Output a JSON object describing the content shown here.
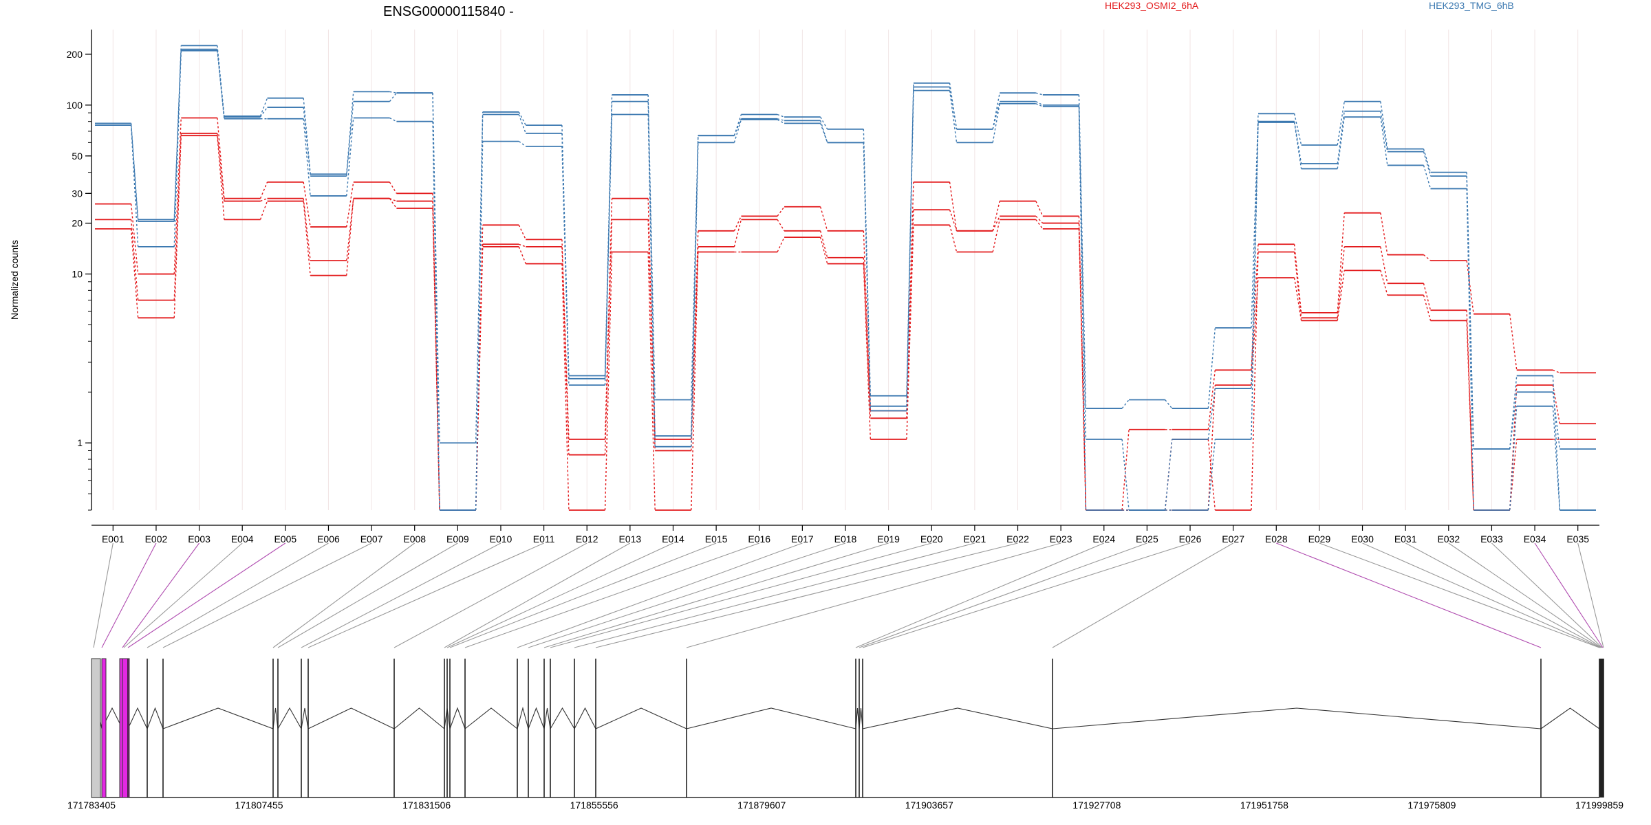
{
  "chart_data": {
    "type": "line",
    "title": "ENSG00000115840 -",
    "ylabel": "Normalized counts",
    "xlabel": "",
    "y_scale": "log",
    "ylim": [
      0.4,
      280
    ],
    "yticks": [
      1,
      10,
      20,
      30,
      50,
      100,
      200
    ],
    "grid": true,
    "legend_position": "top-right",
    "categories": [
      "E001",
      "E002",
      "E003",
      "E004",
      "E005",
      "E006",
      "E007",
      "E008",
      "E009",
      "E010",
      "E011",
      "E012",
      "E013",
      "E014",
      "E015",
      "E016",
      "E017",
      "E018",
      "E019",
      "E020",
      "E021",
      "E022",
      "E023",
      "E024",
      "E025",
      "E026",
      "E027",
      "E028",
      "E029",
      "E030",
      "E031",
      "E032",
      "E033",
      "E034",
      "E035"
    ],
    "series": [
      {
        "name": "HEK293_OSMI2_6hA",
        "color": "#E31A1C",
        "values": [
          26,
          10,
          84,
          28,
          35,
          19,
          35,
          30,
          0.4,
          19.5,
          16,
          1.05,
          28,
          1.05,
          18,
          22,
          25,
          18,
          1.55,
          35,
          18,
          27,
          22,
          0.4,
          1.2,
          1.2,
          2.7,
          15,
          5.9,
          23,
          13,
          12,
          5.8,
          2.7,
          2.6
        ]
      },
      {
        "name": "HEK293_OSMI2_6hA",
        "color": "#E31A1C",
        "values": [
          21,
          7,
          68,
          27,
          28,
          12,
          28,
          27,
          0.4,
          15,
          14.5,
          0.85,
          21,
          0.9,
          14.5,
          21,
          18,
          12.5,
          1.4,
          24,
          18,
          22,
          20,
          0.4,
          0.4,
          1.05,
          0.4,
          13.5,
          5.5,
          14.5,
          8.8,
          6.1,
          0.4,
          2.2,
          1.3
        ]
      },
      {
        "name": "HEK293_OSMI2_6hA",
        "color": "#E31A1C",
        "values": [
          18.5,
          5.5,
          66,
          21,
          27,
          9.8,
          28,
          24.5,
          0.4,
          14.5,
          11.5,
          0.4,
          13.5,
          0.4,
          13.5,
          13.5,
          16.5,
          11.5,
          1.05,
          19.5,
          13.5,
          21,
          18.5,
          0.4,
          0.4,
          0.4,
          2.2,
          9.5,
          5.3,
          10.5,
          7.5,
          5.3,
          0.4,
          1.05,
          1.05
        ]
      },
      {
        "name": "HEK293_TMG_6hB",
        "color": "#3B78B0",
        "values": [
          78,
          21,
          225,
          86,
          110,
          39,
          120,
          118,
          1.0,
          91,
          76,
          2.5,
          115,
          1.8,
          66,
          88,
          85,
          72,
          1.9,
          135,
          72,
          118,
          115,
          1.6,
          1.8,
          1.6,
          4.8,
          89,
          58,
          105,
          55,
          40,
          0.92,
          2.5,
          0.4
        ]
      },
      {
        "name": "HEK293_TMG_6hB",
        "color": "#3B78B0",
        "values": [
          76,
          20.5,
          214,
          85,
          97,
          38,
          105,
          118,
          0.4,
          88,
          68,
          2.4,
          105,
          1.1,
          66,
          83,
          81,
          60,
          1.65,
          128,
          72,
          105,
          100,
          1.05,
          0.4,
          1.05,
          2.1,
          80,
          45,
          92,
          53,
          38,
          0.92,
          2.0,
          0.92
        ]
      },
      {
        "name": "HEK293_TMG_6hB",
        "color": "#3B78B0",
        "values": [
          76,
          14.5,
          210,
          83,
          83,
          29,
          84,
          80,
          0.4,
          61,
          57,
          2.2,
          88,
          0.95,
          60,
          82,
          78,
          60,
          1.55,
          122,
          60,
          102,
          98,
          0.4,
          0.4,
          0.4,
          1.05,
          79,
          42,
          85,
          44,
          32,
          0.4,
          1.65,
          0.4
        ]
      }
    ],
    "genomic_axis": {
      "tick_labels": [
        "171783405",
        "171807455",
        "171831506",
        "171855556",
        "171879607",
        "171903657",
        "171927708",
        "171951758",
        "171975809",
        "171999859"
      ],
      "range": [
        171783405,
        171999859
      ]
    }
  }
}
